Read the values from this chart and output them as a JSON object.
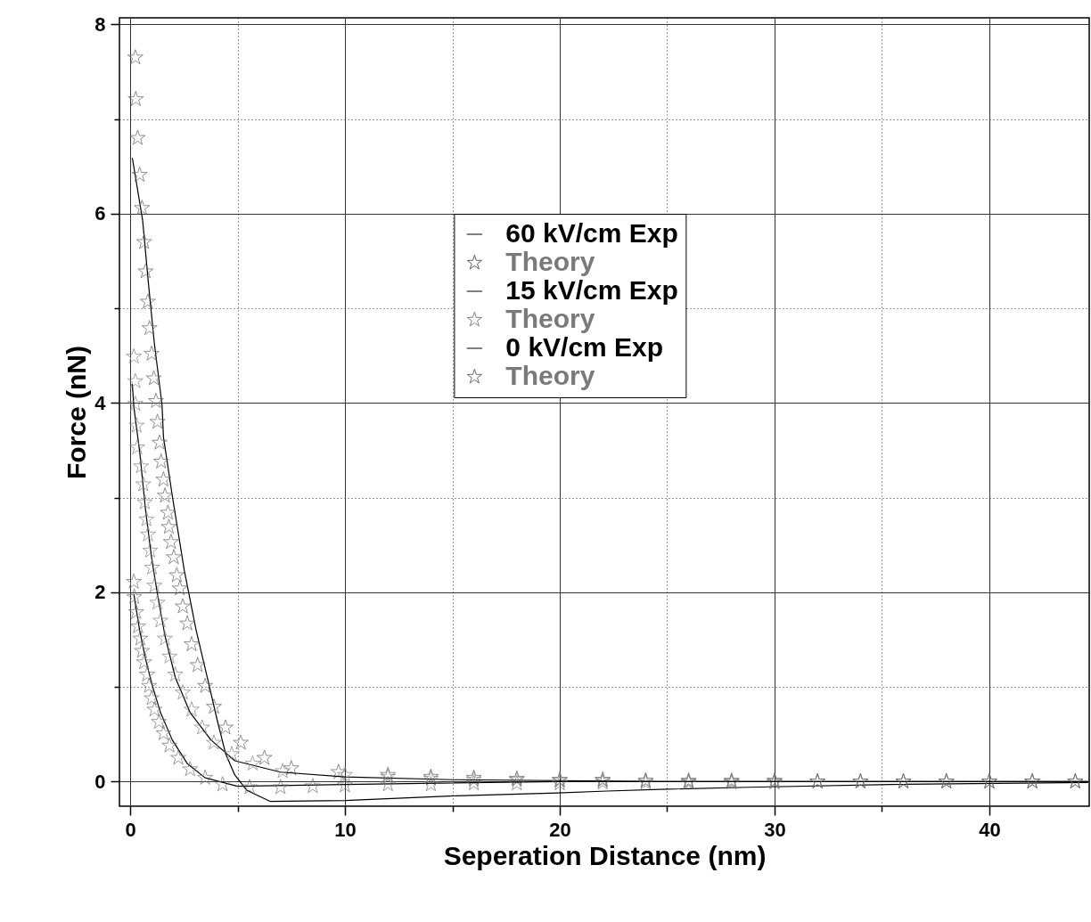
{
  "chart_data": {
    "type": "line",
    "xlabel": "Seperation Distance (nm)",
    "ylabel": "Force (nN)",
    "xlim": [
      -0.5,
      44.65
    ],
    "ylim": [
      -0.26,
      8.07
    ],
    "xticks": [
      0,
      {
        "value": 5,
        "label": null
      },
      10,
      {
        "value": 15,
        "label": null
      },
      20,
      {
        "value": 25,
        "label": null
      },
      30,
      {
        "value": 35,
        "label": null
      },
      40
    ],
    "yticks": [
      0,
      {
        "value": 1,
        "label": null
      },
      2,
      {
        "value": 3,
        "label": null
      },
      4,
      {
        "value": 5,
        "label": null
      },
      6,
      {
        "value": 7,
        "label": null
      },
      8
    ],
    "grid": true,
    "legend": "top",
    "marker": "star",
    "series": [
      {
        "name": "60 kV/cm Exp",
        "marker": "none",
        "color": "#000000",
        "x": [
          0.1,
          0.58,
          0.86,
          1.13,
          1.48,
          1.55,
          1.96,
          2.52,
          3.07,
          3.62,
          4.04,
          4.45,
          4.87,
          5.42,
          6.53,
          10,
          15.2,
          19.9,
          22.2,
          25,
          28.8,
          35.4,
          44.6
        ],
        "values": [
          6.59,
          5.93,
          5.24,
          4.62,
          3.99,
          3.64,
          3.02,
          2.23,
          1.6,
          1.07,
          0.66,
          0.29,
          0.07,
          -0.09,
          -0.21,
          -0.2,
          -0.15,
          -0.12,
          -0.1,
          -0.08,
          -0.06,
          -0.03,
          -0.01
        ]
      },
      {
        "name": "Theory",
        "type": "scatter",
        "color": "#5f5f5f",
        "x": [
          0.24,
          0.26,
          0.35,
          0.44,
          0.55,
          0.65,
          0.72,
          0.82,
          0.9,
          1.0,
          1.1,
          1.2,
          1.27,
          1.37,
          1.44,
          1.55,
          1.62,
          1.76,
          1.8,
          1.9,
          2.03,
          2.17,
          2.31,
          2.45,
          2.66,
          2.86,
          3.14,
          3.49,
          3.9,
          4.44,
          5.15,
          6.25,
          7.5,
          9.7,
          12,
          14,
          16,
          18,
          20,
          22,
          24,
          26,
          28,
          30,
          32,
          34,
          36,
          38,
          40,
          42,
          44
        ],
        "values": [
          7.65,
          7.21,
          6.8,
          6.41,
          6.06,
          5.7,
          5.39,
          5.07,
          4.79,
          4.52,
          4.26,
          4.02,
          3.8,
          3.58,
          3.38,
          3.19,
          3.02,
          2.84,
          2.69,
          2.53,
          2.37,
          2.18,
          2.04,
          1.85,
          1.67,
          1.45,
          1.23,
          1.01,
          0.79,
          0.57,
          0.41,
          0.25,
          0.14,
          0.1,
          0.07,
          0.05,
          0.04,
          0.03,
          0.02,
          0.02,
          0.01,
          0.01,
          0.01,
          0.01,
          0,
          0,
          0,
          0,
          0,
          0,
          0
        ]
      },
      {
        "name": "15 kV/cm Exp",
        "marker": "none",
        "color": "#000000",
        "x": [
          0.1,
          0.17,
          0.44,
          0.72,
          1.0,
          1.27,
          1.62,
          2.1,
          2.79,
          3.76,
          4.87,
          7,
          10,
          15,
          25,
          44.6
        ],
        "values": [
          4.2,
          3.96,
          3.49,
          2.86,
          2.36,
          1.98,
          1.54,
          1.1,
          0.73,
          0.44,
          0.22,
          0.1,
          0.05,
          0.02,
          0,
          0
        ]
      },
      {
        "name": "Theory",
        "type": "scatter",
        "color": "#808080",
        "x": [
          0.17,
          0.24,
          0.24,
          0.3,
          0.33,
          0.51,
          0.61,
          0.68,
          0.76,
          0.83,
          0.93,
          1.02,
          1.13,
          1.27,
          1.41,
          1.62,
          1.83,
          2.1,
          2.45,
          2.86,
          3.35,
          3.9,
          4.73,
          5.7,
          7.1,
          10,
          12,
          14,
          16,
          18,
          20,
          22,
          24,
          26,
          28,
          30,
          32,
          34,
          36,
          38,
          40,
          42,
          44
        ],
        "values": [
          4.49,
          4.23,
          3.99,
          3.76,
          3.53,
          3.33,
          3.14,
          2.95,
          2.77,
          2.61,
          2.44,
          2.26,
          2.07,
          1.89,
          1.7,
          1.51,
          1.32,
          1.13,
          0.94,
          0.76,
          0.57,
          0.41,
          0.29,
          0.19,
          0.11,
          0.07,
          0.05,
          0.03,
          0.02,
          0.02,
          0.01,
          0.01,
          0.01,
          0,
          0,
          0,
          0,
          0,
          0,
          0,
          0,
          0,
          0
        ]
      },
      {
        "name": "0 kV/cm Exp",
        "marker": "none",
        "color": "#000000",
        "x": [
          0.17,
          0.44,
          0.72,
          1.0,
          1.41,
          1.96,
          2.66,
          3.49,
          5,
          10,
          20,
          44.6
        ],
        "values": [
          1.98,
          1.6,
          1.29,
          1.04,
          0.73,
          0.44,
          0.19,
          0.04,
          -0.05,
          -0.03,
          0,
          0
        ]
      },
      {
        "name": "Theory",
        "type": "scatter",
        "color": "#6e6e6e",
        "x": [
          0.17,
          0.19,
          0.28,
          0.37,
          0.47,
          0.55,
          0.65,
          0.79,
          0.88,
          1.0,
          1.13,
          1.34,
          1.55,
          1.83,
          2.24,
          2.79,
          3.49,
          4.3,
          5.56,
          7,
          8.5,
          10,
          12,
          14,
          16,
          18,
          20,
          22,
          24,
          26,
          28,
          30,
          32,
          34,
          36,
          38,
          40,
          42,
          44
        ],
        "values": [
          2.11,
          1.95,
          1.79,
          1.64,
          1.51,
          1.38,
          1.26,
          1.13,
          1.01,
          0.88,
          0.76,
          0.63,
          0.51,
          0.38,
          0.25,
          0.13,
          0.04,
          -0.03,
          -0.06,
          -0.06,
          -0.05,
          -0.04,
          -0.03,
          -0.03,
          -0.02,
          -0.02,
          -0.02,
          -0.01,
          -0.01,
          -0.01,
          -0.01,
          -0.01,
          0,
          0,
          0,
          0,
          0,
          0,
          0
        ]
      }
    ]
  }
}
